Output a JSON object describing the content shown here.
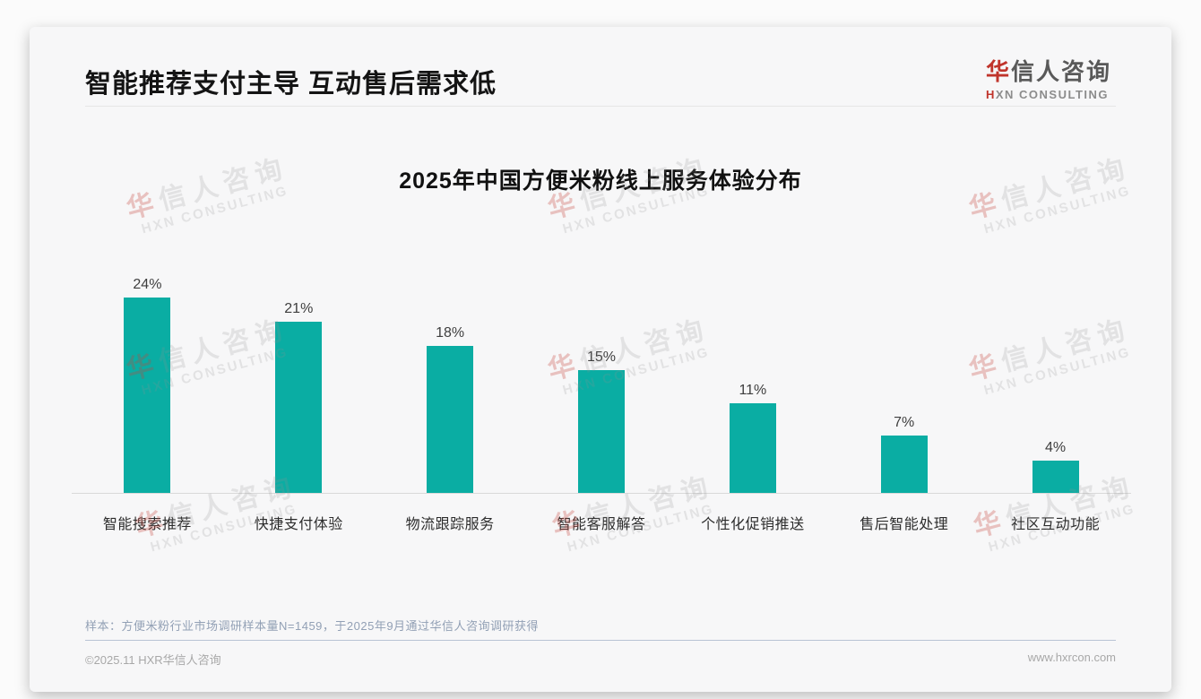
{
  "header": {
    "title": "智能推荐支付主导 互动售后需求低"
  },
  "logo": {
    "cn_accent": "华",
    "cn_rest": "信人咨询",
    "en_accent": "H",
    "en_rest": "XN CONSULTING"
  },
  "watermark": {
    "cn_accent": "华",
    "cn_rest": "信人咨询",
    "en": "HXN CONSULTING"
  },
  "chart_data": {
    "type": "bar",
    "title": "2025年中国方便米粉线上服务体验分布",
    "categories": [
      "智能搜索推荐",
      "快捷支付体验",
      "物流跟踪服务",
      "智能客服解答",
      "个性化促销推送",
      "售后智能处理",
      "社区互动功能"
    ],
    "values": [
      24,
      21,
      18,
      15,
      11,
      7,
      4
    ],
    "value_labels": [
      "24%",
      "21%",
      "18%",
      "15%",
      "11%",
      "7%",
      "4%"
    ],
    "unit": "%",
    "bar_color": "#0aada3",
    "ylim": [
      0,
      26
    ],
    "grid": "off",
    "legend": "none",
    "value_label_position": "above-bar"
  },
  "footnote": {
    "text": "样本：方便米粉行业市场调研样本量N=1459，于2025年9月通过华信人咨询调研获得"
  },
  "footer": {
    "copyright": "©2025.11 HXR华信人咨询",
    "website": "www.hxrcon.com"
  }
}
